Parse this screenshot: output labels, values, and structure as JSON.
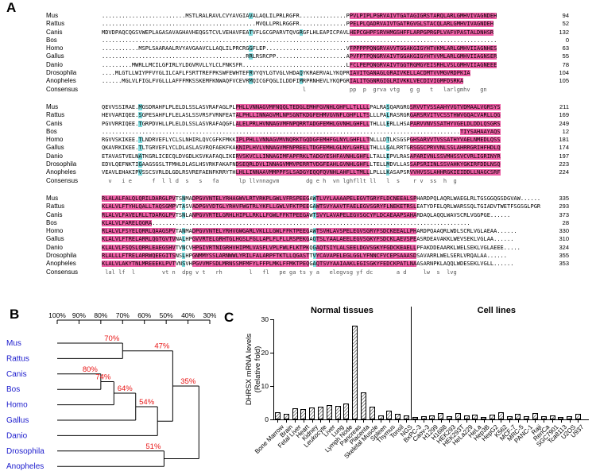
{
  "panels": {
    "a": "A",
    "b": "B",
    "c": "C"
  },
  "colors": {
    "pink": "#ee5fa6",
    "cyan": "#7fdcdf",
    "tree_species": "#1c1ccd",
    "tree_pct": "#e81616"
  },
  "alignment": {
    "blocks": [
      {
        "pink_ranges": [
          [
            74,
            119
          ]
        ],
        "cyan_cols": [
          44,
          59
        ],
        "rows": [
          {
            "name": "Mus",
            "seq": ".........................MSTLRALRAVLCVYAVGIAVALAQLILPRLRGFR..............PPVLPIPLPGRVAIVTGATAGIGRSTARQLARLGMHVIVAGNDEH",
            "num": "94"
          },
          {
            "name": "Rattus",
            "seq": "..............................................MVQLLPRLRGGFR..............PPELPLQADRVAIVTGATRGVGLSTACQLARLGMHVIVAGNDEH",
            "num": "52"
          },
          {
            "name": "Canis",
            "seq": "MDVDPAQCQGSVWEPLAGASAVAGHAVHEQGSTCVLVEHAVFEATVFLGCGPARVTQVGRGFLHLEAPICPAVLHEPCGHPFSRVHMGSHFFLARPGPRGPLVAFVPASTALDNHSR",
            "num": "132"
          },
          {
            "name": "Bos",
            "seq": "......................................................................................................................",
            "num": "0"
          },
          {
            "name": "Homo",
            "seq": "...........MSPLSAARAALRVYAVGAAVCLLAQLILPRCRGGFLEP........................VFPPPPPQNGRVAVVTGGAKGIGYHTVKMLARLGMHVIIAGNHES",
            "num": "63"
          },
          {
            "name": "Gallus",
            "seq": "...........................................RRLRSRCPP.....................APVFPTPQNGRVAIVTGGAKGIGYHTVVMLARLGMHVIIAGNSER",
            "num": "55"
          },
          {
            "name": "Danio",
            "seq": ".........MWRLLMCILGFIRLYLDGVRVLLYLCLFNKSFR...............................LFCLPEPQNGRVAIVTGGTRGMGYEISRHLVSLGMHVIIAGNEEE",
            "num": "78"
          },
          {
            "name": "Drosophila",
            "seq": "....MLGTLLWIYPFVYGLILCAFLFSRTTREFPKSWFEWHTEFRVYQYLGTVGLVHDAQYKRAERVALYKQPRIAVITGANAGLGRAIVKELLACDMTVVMGVRDPKIA",
            "num": "104"
          },
          {
            "name": "Anopheles",
            "seq": "......MGLVLFIGLFVGLLLAFFFMKSSKEMFKNWAQFVCEVRMQICGFQGLILDDFIMRPRNHEVLYKQPGRIALITGGNRGIGLRIVKKLVECDIVIGMFDSRKA",
            "num": "105"
          },
          {
            "name": "Consensus",
            "seq": "                                                            l             pp  p  grva vtg   g g   t   larlgmhv   gn",
            "num": "",
            "consensus": true
          }
        ]
      },
      {
        "pink_ranges": [
          [
            40,
            80
          ],
          [
            92,
            120
          ]
        ],
        "cyan_cols": [
          11,
          85
        ],
        "rows": [
          {
            "name": "Mus",
            "seq": "QEVVSSIRAE.MGSDRAHFLPLELDLSSLASVRAFAGLPLPHLLVNNAGVMFNQQLTEDGLEMHFGVNHLGHFLLTLLLLPALRASQARGRGSRVVTVSSAAHYVGTVDMAALVGRSYS",
            "num": "211"
          },
          {
            "name": "Rattus",
            "seq": "HEVVARIQEE.SGPESAHFLFLELASLSSVRSFVRNFEATALPHLLINNAGVMLNPSGNTKDGFEHMVGVNFLGHFLLTSLLLPALRASRGRGARSRVITVCSSTHWVGQACVARLLQG",
            "num": "169"
          },
          {
            "name": "Canis",
            "seq": "PGVVRRIQEE.TGRPDVHLLPLELDLSSLASVRAFAQGFLALELPRLHVNNAGVMFNPQRRTADGFEMHLGVNHLGHFLLTHLLLERLLHSAPARVVNVSSATHYVGELDLDDLQSGRS",
            "num": "249"
          },
          {
            "name": "Bos",
            "seq": "...........................................................................................................TIYSAHAAYAQS",
            "num": "12"
          },
          {
            "name": "Homo",
            "seq": "RGVVSKIKEE.TLNDRVEFLYCLSLNHIRLQVCGFKFMKKIPLPHLLVNNAGVMVNQRKTGQDGFEMHFGLNYLGHFLLTNLLLDTLKSGSPGHSARVVTVSSATHYVAELNMEDLQSS",
            "num": "181"
          },
          {
            "name": "Gallus",
            "seq": "QKAVRKIKEE.TLTGRVEFLYCLDLASLASVRQFAEKFKAKNIPLHVLVNNAGVMFNPREELTDGFEMHLGLNYLGHFLLTHLLLGALRRTGRSGSCPRVVNLSSLAHRRGRIHFHDLQ",
            "num": "174"
          },
          {
            "name": "Danio",
            "seq": "ETAVASTVELNATKGRLICECQLDVGDLKSVKAFAQLIKERVSKVCLLINNAGIMFAPFRKLTADGYESHFAVNHLGHFLLTALLEPVLRASAPARIVNLSSVMHSSVCVRLIGRINYR",
            "num": "197"
          },
          {
            "name": "Drosophila",
            "seq": "EDVLQEFNKTIGAAGSGSLTFMHLDLASLHSVRKFAKAFNDSEQRLDVLINNAGVMMVPERRTVDGFEAHLGVNHLGHFLLTELLMDVLLASSAPSRIINLSSVAHKYGKIRFDDLNSQ",
            "num": "223"
          },
          {
            "name": "Anopheles",
            "seq": "VEAVLEHAKIPVSSCSVRLDLGDLRSVREFAENFKRRYTHLHLLINNAAVMMPPFSLSADGYEQQFQVNHLAHFLLTMLLLPLLLKASAPSRVVHVSSLAHHRGKIEIDDLLNAGCSRF",
            "num": "224"
          },
          {
            "name": "Consensus",
            "seq": "  v   i e      f  l l d  s   s   fa      lp llvnnagvm        dg e h  vn lghfllt ll   l  s    r v  ss  h  g",
            "num": "",
            "consensus": true
          }
        ]
      },
      {
        "pink_ranges": [
          [
            0,
            22
          ],
          [
            27,
            62
          ],
          [
            64,
            94
          ]
        ],
        "cyan_cols": [
          24,
          63
        ],
        "rows": [
          {
            "name": "Mus",
            "seq": "RLALALFALQLQRILDARGLPVTSNMADPGVVNTELYRHAGWVLRTVRKPLGWLVFRSPEEGAWTLVYLAAAAPELEGVTGRYFLDCNEEALSPHARDPQLAQRLWAEGLRLTGSGGQGSDGVAW......",
            "num": "335"
          },
          {
            "name": "Rattus",
            "seq": "KLALVLFTYHLQALLTAQSGMPVTASVADPGVVDTGLYRHVFWGTRLYKFLLGWLVFKTPEEGAWTSVYAAVTFAELEGVSGRYFLNEKETRSLEATYDFELQRLWARSSQLTGIADVTWETFSGSGLPGR",
            "num": "293"
          },
          {
            "name": "Canis",
            "seq": "RLALVLFAVELRLLTDARGLPVTSNLANPGVVRTELGRHLHIPLLRKLLFGWLFFKTPEEGAWTSVYLAVAPELEGVSGCYFLDCAEAAPSAHARDAQLAQQLWAVSCRLVGGPGE......",
            "num": "373"
          },
          {
            "name": "Bos",
            "seq": "KLALVLFARELQGRA...............................................................................................",
            "num": "28"
          },
          {
            "name": "Homo",
            "seq": "RLALVLFSYELQRRLQAAGSPVTANMADPGVVNTELYRHVGWGARLVKLLLGWLFFKTPEEGAWTSVHLAVSPELEGVSGRYFSDCKEEALLPHARDPQAAQRLWDLSCRLVGLAEAA......",
            "num": "330"
          },
          {
            "name": "Gallus",
            "seq": "KLALVLFTRELARRLQGTGVTVNALHPGVVRTELGRHTGLHGSLFGLLAPLFLFLLRSPEKGAQTSLYAALAEELEGVSGKYFSDCKLAEVSPEASRDEAVAKKLWEVSEKLVGLAA......",
            "num": "310"
          },
          {
            "name": "Danio",
            "seq": "KLALVLFSQSLQRRLEAEGSHVTVNCVHPGIVRTNIGRHVHIPMLVASFLVPLFWLFLKTPKQGAQTSIYLALSEELDGVSGKYFGDCKEAELLPFAKDDEAARKLWELSEKLVGLAEEE.....",
            "num": "324"
          },
          {
            "name": "Drosophila",
            "seq": "RLALLLFTRELARRWQEEGITSNSLHPGNMMYSSLARNWWLYRILFALARPFTKTLLQGASTTVYCAVAPELEGLGGLYFNNCFVCEPSAAASDSAVARRLWELSERLVRQALAA......",
            "num": "355"
          },
          {
            "name": "Anopheles",
            "seq": "KLALVLAKYTNLMREEEKLPVTVNSVHPGVVMFSDLMRNSSMFMFYLFFPLMKLFFMKTPEQGAQTSVYAAIAAKLEGISGKYFEDCKPATLNAASARNPKLAQQLWDESEKLVGLL......",
            "num": "353"
          },
          {
            "name": "Consensus",
            "seq": " lal lf  l        vt n  dpg v t   rh        l   fl   pe ga ts y a   elegvsg yf dc       a d     lw  s  lvg",
            "num": "",
            "consensus": true
          }
        ]
      }
    ]
  },
  "tree": {
    "scale_ticks": [
      "100%",
      "90%",
      "80%",
      "70%",
      "60%",
      "50%",
      "40%",
      "30%"
    ],
    "root": {
      "join": 35,
      "label": "35%",
      "children": [
        {
          "join": 47,
          "label": "47%",
          "children": [
            {
              "join": 70,
              "label": "70%",
              "children": [
                {
                  "leaf": "Mus"
                },
                {
                  "leaf": "Rattus"
                }
              ]
            },
            {
              "join": 54,
              "label": "54%",
              "children": [
                {
                  "join": 64,
                  "label": "64%",
                  "children": [
                    {
                      "join": 74,
                      "label": "74%",
                      "children": [
                        {
                          "join": 80,
                          "label": "80%",
                          "children": [
                            {
                              "leaf": "Canis"
                            },
                            {
                              "leaf": "Bos"
                            }
                          ]
                        },
                        {
                          "leaf": "Homo"
                        }
                      ]
                    },
                    {
                      "leaf": "Gallus"
                    }
                  ]
                },
                {
                  "leaf": "Danio"
                }
              ]
            }
          ]
        },
        {
          "join": 51,
          "label": "51%",
          "children": [
            {
              "leaf": "Drosophila"
            },
            {
              "leaf": "Anopheles"
            }
          ]
        }
      ]
    }
  },
  "chart_data": {
    "type": "bar",
    "ylabel_lines": [
      "DHRSX mRNA levels",
      "(Relative fold)"
    ],
    "ylim": [
      0,
      30
    ],
    "yticks": [
      0,
      10,
      20,
      30
    ],
    "groups": [
      {
        "name": "Normal tissues",
        "categories": [
          "Bone Marrow",
          "Brain",
          "Fetal Liver",
          "Heart",
          "Kidney",
          "Leukocyte",
          "Liver",
          "Lung",
          "Lymph Node",
          "Pancreas",
          "Placenta",
          "Skeletal Muscle",
          "Spleen",
          "Thymus",
          "Tonsil",
          "NGS"
        ],
        "values": [
          2.1,
          1.6,
          3.4,
          3.0,
          3.6,
          3.7,
          4.2,
          4.1,
          4.8,
          28.2,
          8.1,
          3.9,
          1.2,
          2.6,
          1.6,
          1.1
        ]
      },
      {
        "name": "Cell lines",
        "categories": [
          "BxPC-3",
          "Caov-3",
          "H1299",
          "H1688",
          "HEK293",
          "HEK293T",
          "HeLa229",
          "HeLa",
          "Hep3B",
          "HepG2",
          "K562",
          "MCF-7",
          "MRC-5",
          "PANC-1",
          "Raji",
          "RenCa",
          "SGC7901",
          "Tca8113",
          "U2OS",
          "U937"
        ],
        "values": [
          0.6,
          0.9,
          1.2,
          1.8,
          1.0,
          2.0,
          1.2,
          1.5,
          0.8,
          1.4,
          2.2,
          1.0,
          1.6,
          0.9,
          2.0,
          1.0,
          1.3,
          0.8,
          1.0,
          1.6
        ]
      }
    ]
  }
}
